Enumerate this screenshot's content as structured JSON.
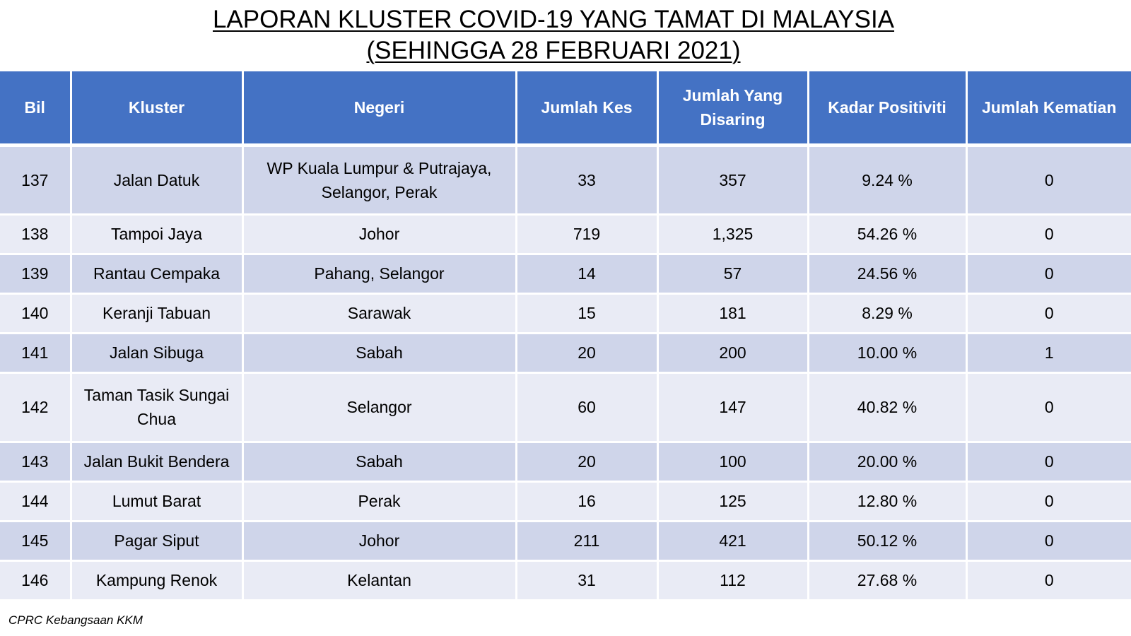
{
  "title": {
    "line1": "LAPORAN KLUSTER COVID-19 YANG TAMAT DI MALAYSIA",
    "line2": "(SEHINGGA  28 FEBRUARI 2021)"
  },
  "table": {
    "headers": [
      "Bil",
      "Kluster",
      "Negeri",
      "Jumlah Kes",
      "Jumlah Yang Disaring",
      "Kadar Positiviti",
      "Jumlah Kematian"
    ],
    "rows": [
      [
        "137",
        "Jalan Datuk",
        "WP Kuala Lumpur & Putrajaya, Selangor, Perak",
        "33",
        "357",
        "9.24 %",
        "0"
      ],
      [
        "138",
        "Tampoi Jaya",
        "Johor",
        "719",
        "1,325",
        "54.26 %",
        "0"
      ],
      [
        "139",
        "Rantau Cempaka",
        "Pahang, Selangor",
        "14",
        "57",
        "24.56 %",
        "0"
      ],
      [
        "140",
        "Keranji Tabuan",
        "Sarawak",
        "15",
        "181",
        "8.29 %",
        "0"
      ],
      [
        "141",
        "Jalan Sibuga",
        "Sabah",
        "20",
        "200",
        "10.00 %",
        "1"
      ],
      [
        "142",
        "Taman Tasik Sungai Chua",
        "Selangor",
        "60",
        "147",
        "40.82 %",
        "0"
      ],
      [
        "143",
        "Jalan Bukit Bendera",
        "Sabah",
        "20",
        "100",
        "20.00 %",
        "0"
      ],
      [
        "144",
        "Lumut Barat",
        "Perak",
        "16",
        "125",
        "12.80 %",
        "0"
      ],
      [
        "145",
        "Pagar Siput",
        "Johor",
        "211",
        "421",
        "50.12 %",
        "0"
      ],
      [
        "146",
        "Kampung Renok",
        "Kelantan",
        "31",
        "112",
        "27.68 %",
        "0"
      ]
    ]
  },
  "source": "CPRC Kebangsaan KKM",
  "colors": {
    "header_bg": "#4472c4",
    "row_dark": "#cfd5ea",
    "row_light": "#e9ebf5"
  }
}
